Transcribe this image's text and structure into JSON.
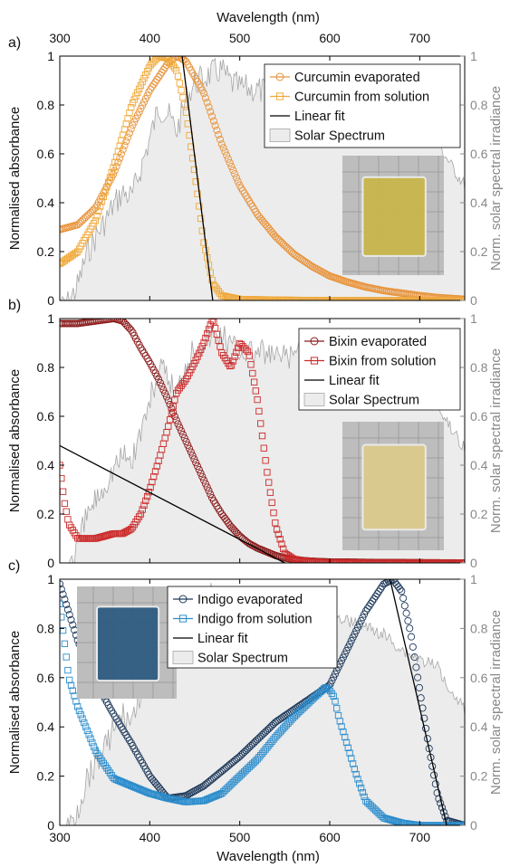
{
  "figure": {
    "top_xlabel": "Wavelength (nm)",
    "bottom_xlabel": "Wavelength (nm)",
    "colors": {
      "curcumin_evaporated": "#e8933a",
      "curcumin_solution": "#f0a838",
      "bixin_evaporated": "#8b1a1a",
      "bixin_solution": "#cc2a2a",
      "indigo_evaporated": "#1f3a5c",
      "indigo_solution": "#2a8ccc",
      "linear_fit": "#000000",
      "solar": "#ececec",
      "solar_edge": "#a6a6a6"
    },
    "photos": [
      {
        "panel": "a",
        "name": "curcumin-film-photo",
        "film_color": "#c9b64a"
      },
      {
        "panel": "b",
        "name": "bixin-film-photo",
        "film_color": "#dccb8c"
      },
      {
        "panel": "c",
        "name": "indigo-film-photo",
        "film_color": "#2b5a80"
      }
    ]
  },
  "chart_data": [
    {
      "type": "line",
      "panel_label": "a)",
      "xlabel": "Wavelength (nm)",
      "ylabel": "Normalised absorbance",
      "y2label": "Norm. solar spectral irradiance",
      "xlim": [
        300,
        750
      ],
      "ylim": [
        0,
        1
      ],
      "xticks": [
        300,
        400,
        500,
        600,
        700
      ],
      "yticks": [
        0,
        0.2,
        0.4,
        0.6,
        0.8,
        1
      ],
      "ytick_labels": [
        "0",
        "0.2",
        "0.4",
        "0.6",
        "0.8",
        "1"
      ],
      "legend_position": "top-right",
      "series": [
        {
          "name": "Curcumin evaporated",
          "marker": "circle",
          "color": "#e8933a",
          "x": [
            300,
            320,
            340,
            360,
            380,
            400,
            420,
            430,
            440,
            460,
            480,
            500,
            520,
            540,
            560,
            580,
            600,
            620,
            640,
            660,
            680,
            700,
            720,
            750
          ],
          "y": [
            0.29,
            0.31,
            0.38,
            0.52,
            0.71,
            0.86,
            0.97,
            1.0,
            0.98,
            0.85,
            0.64,
            0.47,
            0.35,
            0.26,
            0.19,
            0.14,
            0.1,
            0.075,
            0.055,
            0.04,
            0.03,
            0.02,
            0.012,
            0.005
          ]
        },
        {
          "name": "Curcumin from solution",
          "marker": "square",
          "color": "#f0a838",
          "x": [
            300,
            320,
            340,
            360,
            380,
            400,
            410,
            420,
            430,
            440,
            450,
            460,
            470,
            480,
            500,
            550,
            600,
            650,
            700,
            750
          ],
          "y": [
            0.15,
            0.2,
            0.33,
            0.55,
            0.8,
            0.96,
            1.0,
            0.99,
            0.94,
            0.78,
            0.52,
            0.24,
            0.07,
            0.02,
            0.005,
            0.002,
            0.0,
            0.0,
            0.0,
            0.0
          ]
        },
        {
          "name": "Linear fit",
          "marker": "none",
          "color": "#000000",
          "x": [
            436,
            470
          ],
          "y": [
            1.0,
            0.0
          ]
        },
        {
          "name": "Solar Spectrum",
          "marker": "area",
          "color": "#ececec",
          "x": [
            300,
            310,
            320,
            330,
            340,
            350,
            360,
            370,
            380,
            390,
            400,
            410,
            420,
            430,
            440,
            450,
            460,
            470,
            480,
            490,
            500,
            520,
            540,
            560,
            580,
            600,
            620,
            640,
            660,
            680,
            700,
            720,
            740,
            750
          ],
          "y": [
            0.02,
            0.05,
            0.12,
            0.25,
            0.32,
            0.38,
            0.45,
            0.5,
            0.48,
            0.6,
            0.72,
            0.85,
            0.82,
            0.75,
            0.88,
            0.95,
            0.97,
            0.99,
            1.0,
            0.95,
            0.93,
            0.92,
            0.9,
            0.9,
            0.9,
            0.88,
            0.86,
            0.83,
            0.8,
            0.74,
            0.7,
            0.67,
            0.55,
            0.5
          ]
        }
      ]
    },
    {
      "type": "line",
      "panel_label": "b)",
      "xlabel": "",
      "ylabel": "Normalised absorbance",
      "y2label": "Norm. solar spectral irradiance",
      "xlim": [
        300,
        750
      ],
      "ylim": [
        0,
        1
      ],
      "xticks": [
        300,
        400,
        500,
        600,
        700
      ],
      "yticks": [
        0,
        0.2,
        0.4,
        0.6,
        0.8,
        1
      ],
      "ytick_labels": [
        "0",
        "0.2",
        "0.4",
        "0.6",
        "0.8",
        "1"
      ],
      "legend_position": "top-right",
      "series": [
        {
          "name": "Bixin evaporated",
          "marker": "circle",
          "color": "#8b1a1a",
          "x": [
            300,
            320,
            340,
            360,
            370,
            380,
            390,
            400,
            410,
            420,
            430,
            440,
            450,
            460,
            470,
            480,
            490,
            500,
            510,
            520,
            530,
            540,
            550,
            560,
            570,
            580,
            600,
            650,
            700,
            750
          ],
          "y": [
            0.98,
            0.98,
            0.99,
            1.0,
            0.99,
            0.95,
            0.88,
            0.82,
            0.75,
            0.67,
            0.58,
            0.5,
            0.42,
            0.34,
            0.26,
            0.2,
            0.15,
            0.11,
            0.08,
            0.06,
            0.045,
            0.03,
            0.02,
            0.015,
            0.01,
            0.007,
            0.004,
            0.002,
            0.001,
            0.0
          ]
        },
        {
          "name": "Bixin from solution",
          "marker": "square",
          "color": "#cc2a2a",
          "x": [
            300,
            305,
            310,
            320,
            330,
            340,
            350,
            360,
            370,
            380,
            390,
            400,
            410,
            420,
            430,
            440,
            450,
            460,
            470,
            480,
            490,
            500,
            510,
            520,
            530,
            540,
            550,
            560,
            580,
            600,
            650,
            700,
            750
          ],
          "y": [
            0.4,
            0.25,
            0.16,
            0.1,
            0.1,
            0.1,
            0.11,
            0.12,
            0.12,
            0.14,
            0.2,
            0.3,
            0.42,
            0.55,
            0.7,
            0.75,
            0.82,
            0.9,
            1.0,
            0.86,
            0.8,
            0.9,
            0.86,
            0.66,
            0.38,
            0.15,
            0.04,
            0.015,
            0.005,
            0.002,
            0.0,
            0.0,
            0.0
          ]
        },
        {
          "name": "Linear fit",
          "marker": "none",
          "color": "#000000",
          "x": [
            300,
            550
          ],
          "y": [
            0.48,
            0.0
          ]
        },
        {
          "name": "Solar Spectrum",
          "marker": "area",
          "color": "#ececec",
          "x": [
            300,
            310,
            320,
            330,
            340,
            350,
            360,
            370,
            380,
            390,
            400,
            410,
            420,
            430,
            440,
            450,
            460,
            470,
            480,
            490,
            500,
            520,
            540,
            560,
            580,
            600,
            620,
            640,
            660,
            680,
            700,
            720,
            740,
            750
          ],
          "y": [
            0.02,
            0.05,
            0.12,
            0.25,
            0.32,
            0.38,
            0.45,
            0.5,
            0.48,
            0.6,
            0.72,
            0.85,
            0.82,
            0.75,
            0.88,
            0.95,
            0.97,
            0.99,
            1.0,
            0.95,
            0.93,
            0.92,
            0.9,
            0.9,
            0.9,
            0.88,
            0.86,
            0.83,
            0.8,
            0.74,
            0.7,
            0.67,
            0.55,
            0.5
          ]
        }
      ]
    },
    {
      "type": "line",
      "panel_label": "c)",
      "xlabel": "Wavelength (nm)",
      "ylabel": "Normalised absorbance",
      "y2label": "Norm. solar spectral irradiance",
      "xlim": [
        300,
        750
      ],
      "ylim": [
        0,
        1
      ],
      "xticks": [
        300,
        400,
        500,
        600,
        700
      ],
      "yticks": [
        0,
        0.2,
        0.4,
        0.6,
        0.8,
        1
      ],
      "ytick_labels": [
        "0",
        "0.2",
        "0.4",
        "0.6",
        "0.8",
        "1"
      ],
      "legend_position": "top-center",
      "series": [
        {
          "name": "Indigo evaporated",
          "marker": "circle",
          "color": "#1f3a5c",
          "x": [
            300,
            320,
            340,
            360,
            380,
            400,
            420,
            440,
            460,
            480,
            500,
            520,
            540,
            560,
            580,
            600,
            620,
            640,
            660,
            670,
            680,
            690,
            700,
            710,
            720,
            730,
            750
          ],
          "y": [
            0.98,
            0.75,
            0.58,
            0.45,
            0.33,
            0.2,
            0.11,
            0.12,
            0.16,
            0.22,
            0.28,
            0.35,
            0.42,
            0.47,
            0.52,
            0.57,
            0.72,
            0.87,
            0.98,
            1.0,
            0.95,
            0.78,
            0.55,
            0.32,
            0.12,
            0.02,
            0.0
          ]
        },
        {
          "name": "Indigo from solution",
          "marker": "square",
          "color": "#2a8ccc",
          "x": [
            300,
            310,
            320,
            340,
            360,
            380,
            400,
            420,
            440,
            460,
            480,
            500,
            520,
            540,
            560,
            580,
            595,
            600,
            605,
            610,
            620,
            630,
            640,
            660,
            680,
            700,
            750
          ],
          "y": [
            0.9,
            0.6,
            0.48,
            0.3,
            0.19,
            0.16,
            0.13,
            0.11,
            0.095,
            0.1,
            0.13,
            0.2,
            0.27,
            0.36,
            0.44,
            0.51,
            0.56,
            0.55,
            0.52,
            0.44,
            0.32,
            0.2,
            0.1,
            0.03,
            0.01,
            0.0,
            0.0
          ]
        },
        {
          "name": "Linear fit",
          "marker": "none",
          "color": "#000000",
          "x": [
            667,
            730
          ],
          "y": [
            1.0,
            0.0
          ]
        },
        {
          "name": "Solar Spectrum",
          "marker": "area",
          "color": "#ececec",
          "x": [
            300,
            310,
            320,
            330,
            340,
            350,
            360,
            370,
            380,
            390,
            400,
            410,
            420,
            430,
            440,
            450,
            460,
            470,
            480,
            490,
            500,
            520,
            540,
            560,
            580,
            600,
            620,
            640,
            660,
            680,
            700,
            720,
            740,
            750
          ],
          "y": [
            0.02,
            0.05,
            0.12,
            0.25,
            0.32,
            0.38,
            0.45,
            0.5,
            0.48,
            0.6,
            0.72,
            0.85,
            0.82,
            0.75,
            0.88,
            0.95,
            0.97,
            0.99,
            1.0,
            0.95,
            0.93,
            0.92,
            0.9,
            0.9,
            0.9,
            0.88,
            0.86,
            0.83,
            0.8,
            0.74,
            0.7,
            0.67,
            0.55,
            0.5
          ]
        }
      ]
    }
  ]
}
